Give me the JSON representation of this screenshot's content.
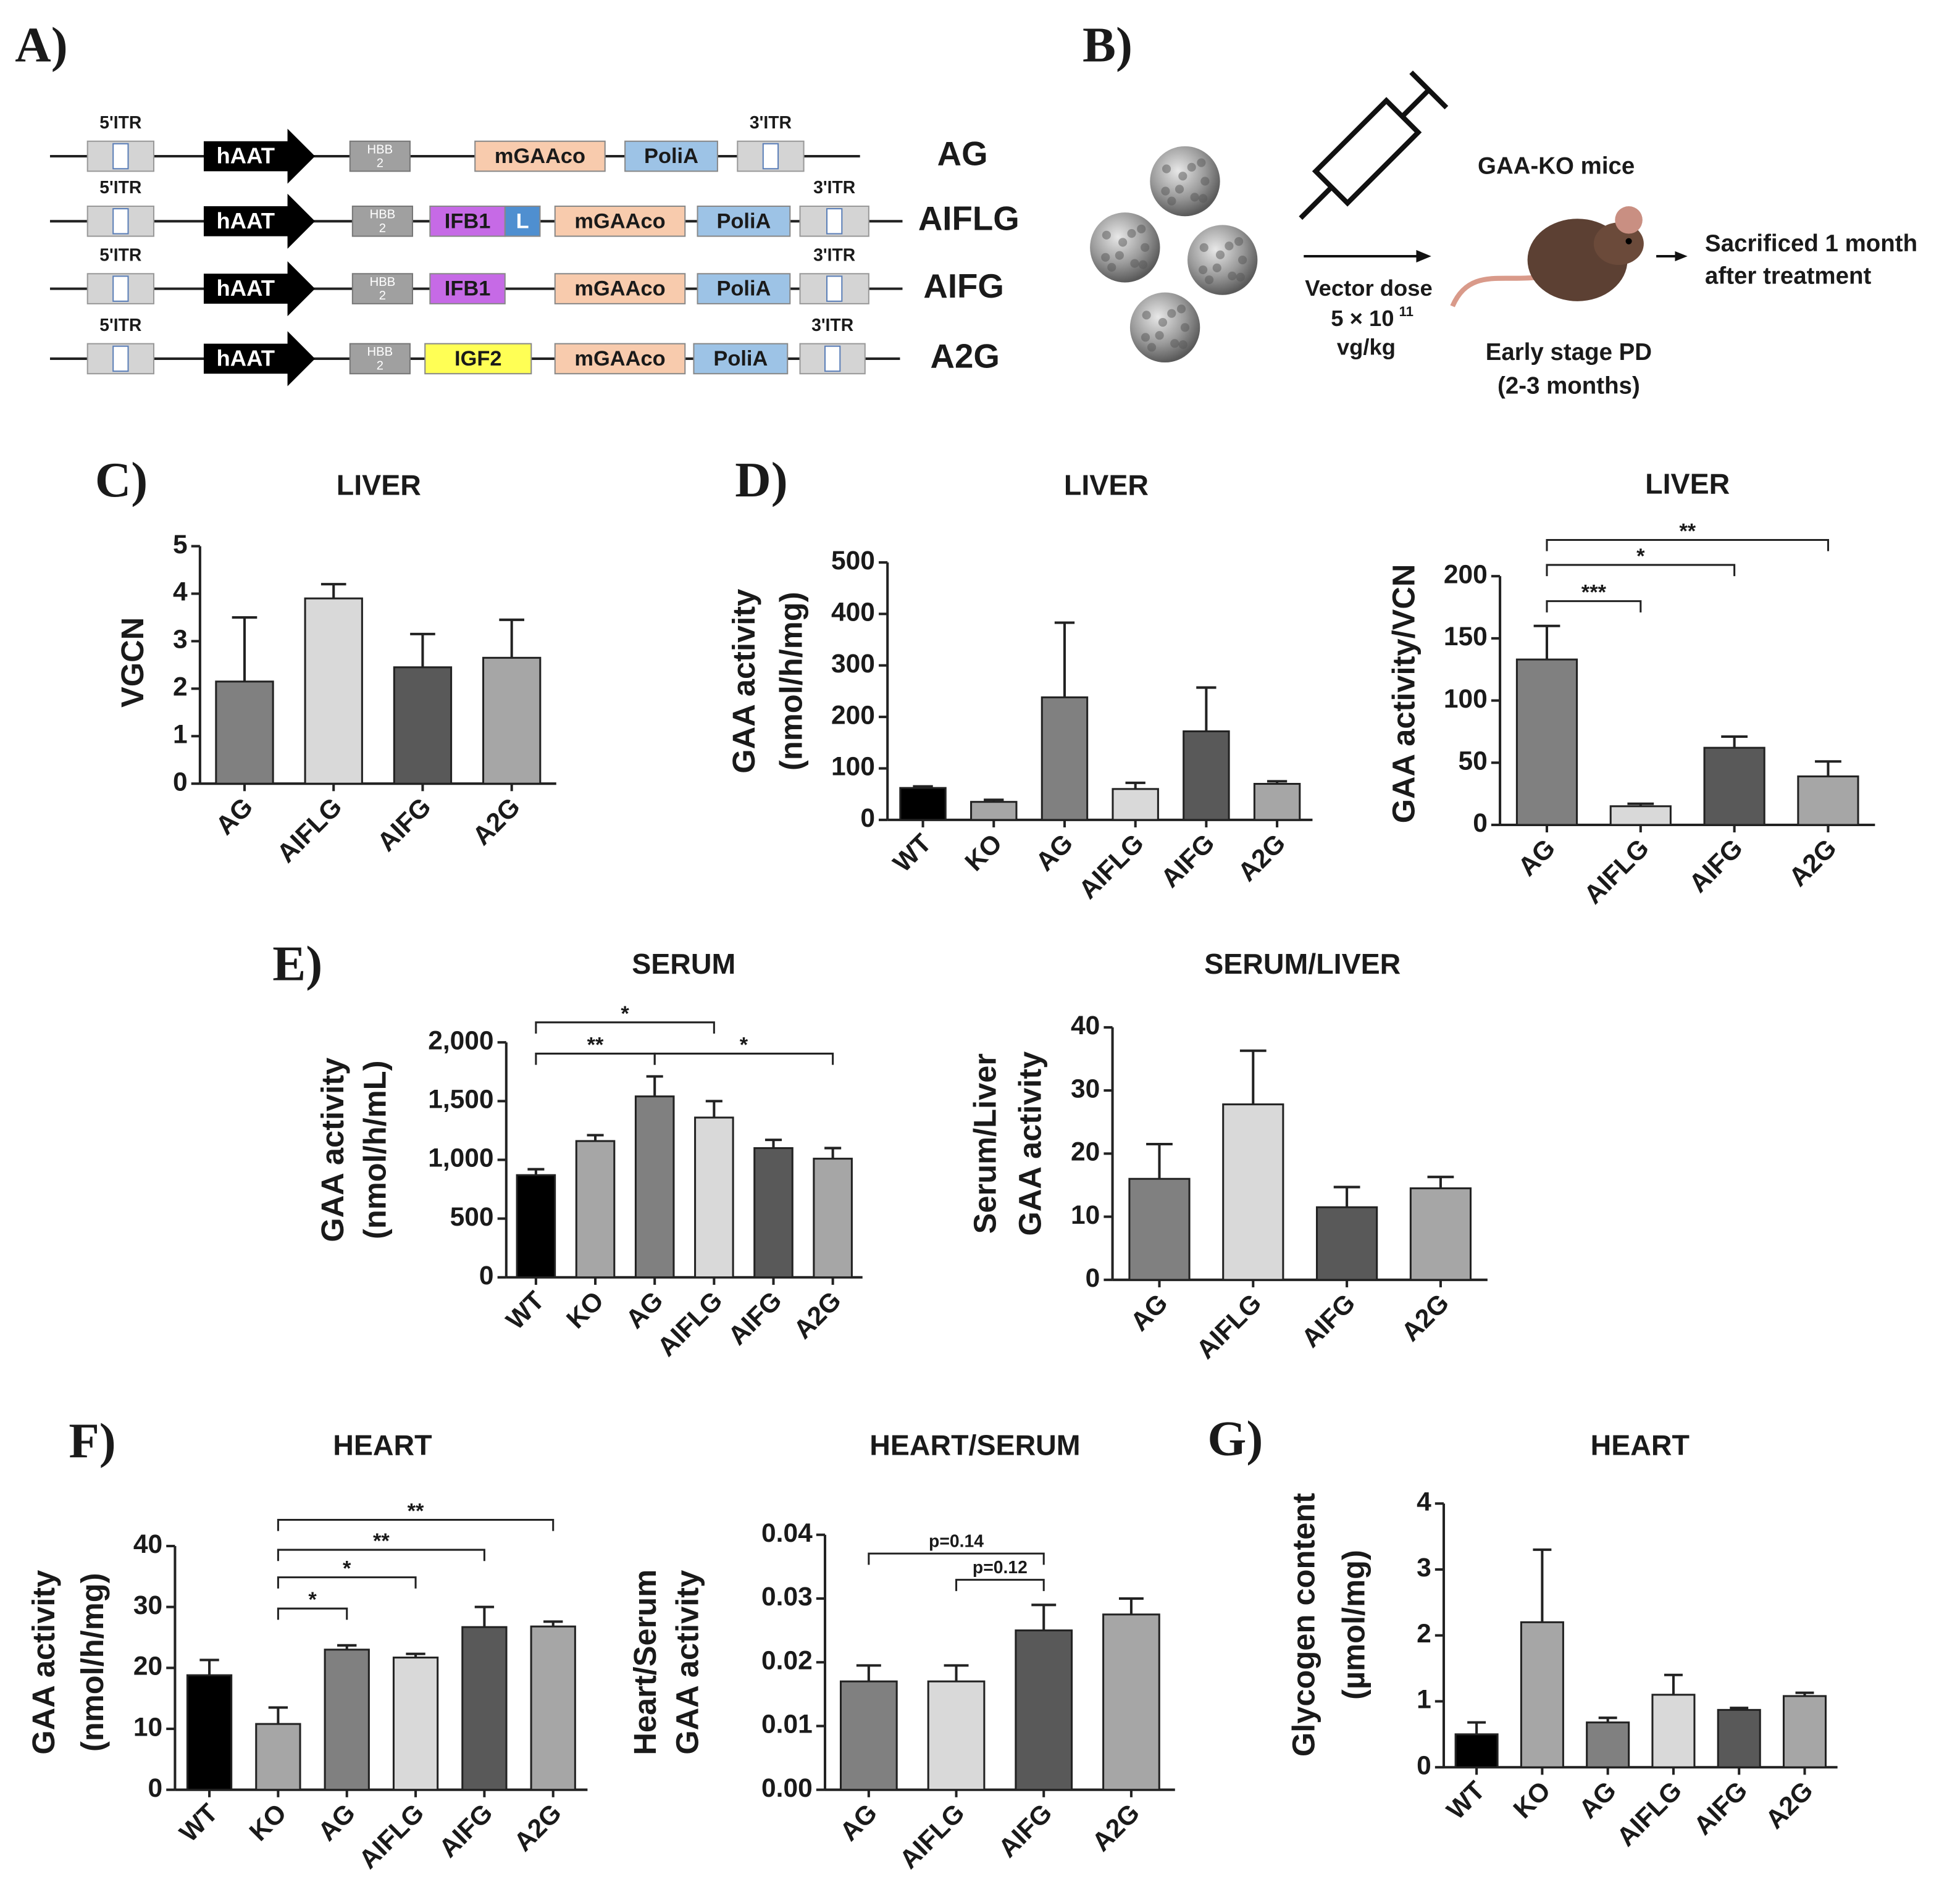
{
  "panel_a": {
    "label": "A)",
    "constructs": [
      {
        "name": "AG",
        "parts": [
          "5'ITR",
          "hAAT",
          [
            "HBB",
            "2"
          ],
          "mGAAco",
          "PoliA",
          "3'ITR"
        ]
      },
      {
        "name": "AIFLG",
        "parts": [
          "5'ITR",
          "hAAT",
          [
            "HBB",
            "2"
          ],
          "IFB1",
          "L",
          "mGAAco",
          "PoliA",
          "3'ITR"
        ]
      },
      {
        "name": "AIFG",
        "parts": [
          "5'ITR",
          "hAAT",
          [
            "HBB",
            "2"
          ],
          "IFB1",
          "mGAAco",
          "PoliA",
          "3'ITR"
        ]
      },
      {
        "name": "A2G",
        "parts": [
          "5'ITR",
          "hAAT",
          [
            "HBB",
            "2"
          ],
          "IGF2",
          "mGAAco",
          "PoliA",
          "3'ITR"
        ]
      }
    ]
  },
  "panel_b": {
    "label": "B)",
    "mice": "GAA-KO mice",
    "dose_title": "Vector dose",
    "dose_base": "5 × 10",
    "dose_exponent": "11",
    "dose_unit": "vg/kg",
    "stage": [
      "Early stage PD",
      "(2-3 months)"
    ],
    "outcome": [
      "Sacrificed 1 month",
      "after treatment"
    ]
  },
  "chart_data": [
    {
      "type": "bar",
      "panel_label": "C)",
      "title": "LIVER",
      "ylabel": [
        "VGCN"
      ],
      "categories": [
        "AG",
        "AIFLG",
        "AIFG",
        "A2G"
      ],
      "values": [
        2.15,
        3.9,
        2.45,
        2.65
      ],
      "errors": [
        1.35,
        0.3,
        0.7,
        0.8
      ],
      "colors": [
        "#808080",
        "#d9d9d9",
        "#595959",
        "#a6a6a6"
      ],
      "ylim": [
        0,
        5
      ],
      "yticks": [
        0,
        1,
        2,
        3,
        4,
        5
      ]
    },
    {
      "type": "bar",
      "panel_label": "D)",
      "title": "LIVER",
      "ylabel": [
        "GAA activity",
        "(nmol/h/mg)"
      ],
      "categories": [
        "WT",
        "KO",
        "AG",
        "AIFLG",
        "AIFG",
        "A2G"
      ],
      "values": [
        62,
        35,
        238,
        60,
        172,
        70
      ],
      "errors": [
        3,
        4,
        145,
        12,
        85,
        5
      ],
      "colors": [
        "#000000",
        "#a6a6a6",
        "#808080",
        "#d9d9d9",
        "#595959",
        "#a6a6a6"
      ],
      "ylim": [
        0,
        500
      ],
      "yticks": [
        0,
        100,
        200,
        300,
        400,
        500
      ]
    },
    {
      "type": "bar",
      "title": "LIVER",
      "ylabel": [
        "GAA activity/VCN"
      ],
      "categories": [
        "AG",
        "AIFLG",
        "AIFG",
        "A2G"
      ],
      "values": [
        133,
        15,
        62,
        39
      ],
      "errors": [
        27,
        2,
        9,
        12
      ],
      "colors": [
        "#808080",
        "#d9d9d9",
        "#595959",
        "#a6a6a6"
      ],
      "ylim": [
        0,
        200
      ],
      "yticks": [
        0,
        50,
        100,
        150,
        200
      ],
      "significance": [
        {
          "from": 0,
          "to": 3,
          "label": "**"
        },
        {
          "from": 0,
          "to": 2,
          "label": "*"
        },
        {
          "from": 0,
          "to": 1,
          "label": "***"
        }
      ]
    },
    {
      "type": "bar",
      "panel_label": "E)",
      "title": "SERUM",
      "ylabel": [
        "GAA activity",
        "(nmol/h/mL)"
      ],
      "categories": [
        "WT",
        "KO",
        "AG",
        "AIFLG",
        "AIFG",
        "A2G"
      ],
      "values": [
        870,
        1160,
        1540,
        1360,
        1100,
        1010
      ],
      "errors": [
        50,
        50,
        170,
        140,
        70,
        90
      ],
      "colors": [
        "#000000",
        "#a6a6a6",
        "#808080",
        "#d9d9d9",
        "#595959",
        "#a6a6a6"
      ],
      "ylim": [
        0,
        2000
      ],
      "yticks": [
        0,
        500,
        {
          "value": 1000,
          "label": "1,000"
        },
        {
          "value": 1500,
          "label": "1,500"
        },
        {
          "value": 2000,
          "label": "2,000"
        }
      ],
      "significance": [
        {
          "from": 0,
          "to": 3,
          "label": "*"
        },
        {
          "from": 0,
          "to": 2,
          "label": "**"
        },
        {
          "from": 2,
          "to": 5,
          "label": "*"
        }
      ]
    },
    {
      "type": "bar",
      "title": "SERUM/LIVER",
      "ylabel": [
        "Serum/Liver",
        "GAA activity"
      ],
      "categories": [
        "AG",
        "AIFLG",
        "AIFG",
        "A2G"
      ],
      "values": [
        16,
        27.8,
        11.5,
        14.5
      ],
      "errors": [
        5.5,
        8.5,
        3.2,
        1.8
      ],
      "colors": [
        "#808080",
        "#d9d9d9",
        "#595959",
        "#a6a6a6"
      ],
      "ylim": [
        0,
        40
      ],
      "yticks": [
        0,
        10,
        20,
        30,
        40
      ]
    },
    {
      "type": "bar",
      "panel_label": "F)",
      "title": "HEART",
      "ylabel": [
        "GAA activity",
        "(nmol/h/mg)"
      ],
      "categories": [
        "WT",
        "KO",
        "AG",
        "AIFLG",
        "AIFG",
        "A2G"
      ],
      "values": [
        18.8,
        10.8,
        23,
        21.7,
        26.7,
        26.8
      ],
      "errors": [
        2.5,
        2.7,
        0.7,
        0.6,
        3.3,
        0.8
      ],
      "colors": [
        "#000000",
        "#a6a6a6",
        "#808080",
        "#d9d9d9",
        "#595959",
        "#a6a6a6"
      ],
      "ylim": [
        0,
        40
      ],
      "yticks": [
        0,
        10,
        20,
        30,
        40
      ],
      "significance": [
        {
          "from": 1,
          "to": 5,
          "label": "**"
        },
        {
          "from": 1,
          "to": 4,
          "label": "**"
        },
        {
          "from": 1,
          "to": 3,
          "label": "*"
        },
        {
          "from": 1,
          "to": 2,
          "label": "*"
        }
      ]
    },
    {
      "type": "bar",
      "title": "HEART/SERUM",
      "ylabel": [
        "Heart/Serum",
        "GAA activity"
      ],
      "categories": [
        "AG",
        "AIFLG",
        "AIFG",
        "A2G"
      ],
      "values": [
        0.017,
        0.017,
        0.025,
        0.0275
      ],
      "errors": [
        0.0025,
        0.0025,
        0.004,
        0.0025
      ],
      "colors": [
        "#808080",
        "#d9d9d9",
        "#595959",
        "#a6a6a6"
      ],
      "ylim": [
        0,
        0.04
      ],
      "yticks": [
        {
          "value": 0,
          "label": "0.00"
        },
        0.01,
        0.02,
        0.03,
        0.04
      ],
      "significance": [
        {
          "from": 0,
          "to": 2,
          "label": "p=0.14"
        },
        {
          "from": 1,
          "to": 2,
          "label": "p=0.12"
        }
      ]
    },
    {
      "type": "bar",
      "panel_label": "G)",
      "title": "HEART",
      "ylabel": [
        "Glycogen content",
        "(µmol/mg)"
      ],
      "categories": [
        "WT",
        "KO",
        "AG",
        "AIFLG",
        "AIFG",
        "A2G"
      ],
      "values": [
        0.5,
        2.2,
        0.68,
        1.1,
        0.87,
        1.08
      ],
      "errors": [
        0.18,
        1.1,
        0.07,
        0.3,
        0.03,
        0.05
      ],
      "colors": [
        "#000000",
        "#a6a6a6",
        "#808080",
        "#d9d9d9",
        "#595959",
        "#a6a6a6"
      ],
      "ylim": [
        0,
        4
      ],
      "yticks": [
        0,
        1,
        2,
        3,
        4
      ]
    }
  ]
}
